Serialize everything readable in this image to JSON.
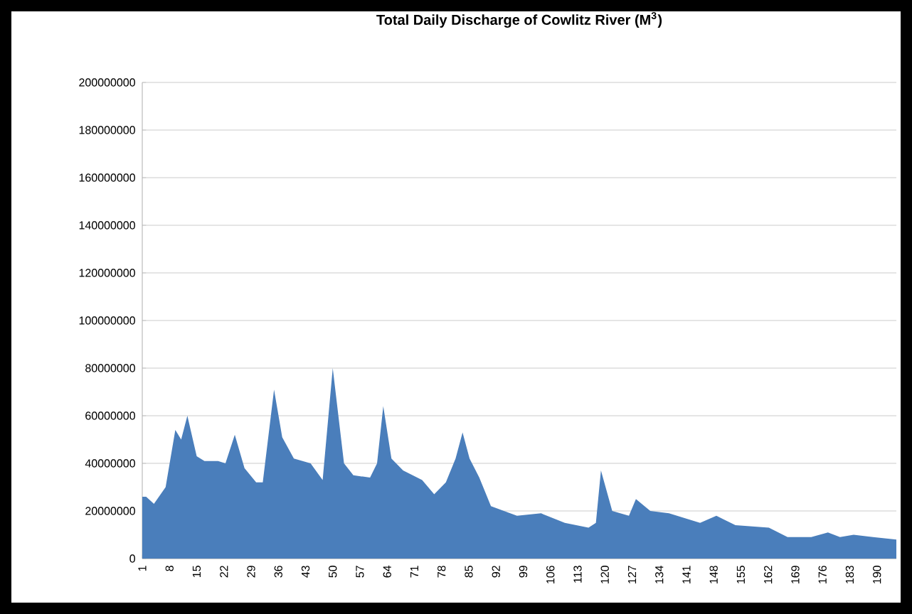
{
  "chart_data": {
    "type": "area",
    "title": "Total Daily Discharge of Cowlitz River (M$^{3}$)",
    "x": [
      1,
      2,
      4,
      7,
      9.5,
      11,
      12.6,
      15,
      17,
      20.5,
      22.4,
      24.8,
      27.3,
      30.3,
      32,
      34.9,
      37,
      40,
      44.3,
      47.4,
      50,
      52.9,
      55.3,
      59.6,
      61.4,
      63,
      65.1,
      68.1,
      73,
      76.1,
      79.1,
      81.6,
      83.4,
      85.2,
      87.7,
      90.7,
      97.4,
      103.6,
      109.7,
      115.8,
      117.7,
      119,
      121.9,
      126.2,
      128,
      131.7,
      136.5,
      144.5,
      148.7,
      153.6,
      162.2,
      167,
      173.1,
      177.4,
      180.5,
      184,
      189,
      195
    ],
    "values": [
      26000000,
      26000000,
      23000000,
      30000000,
      54000000,
      50000000,
      60000000,
      43000000,
      41000000,
      41000000,
      40000000,
      52000000,
      38000000,
      32000000,
      32000000,
      71000000,
      51000000,
      42000000,
      40000000,
      33000000,
      80000000,
      40000000,
      35000000,
      34000000,
      40000000,
      64000000,
      42000000,
      37000000,
      33000000,
      27000000,
      32000000,
      42000000,
      53000000,
      42000000,
      34000000,
      22000000,
      18000000,
      19000000,
      15000000,
      13000000,
      15000000,
      37000000,
      20000000,
      18000000,
      25000000,
      20000000,
      19000000,
      15000000,
      18000000,
      14000000,
      13000000,
      9000000,
      9000000,
      11000000,
      9000000,
      10000000,
      9000000,
      8000000
    ],
    "color": "#4a7ebb",
    "xlim": [
      1,
      195
    ],
    "xticks": [
      1,
      8,
      15,
      22,
      29,
      36,
      43,
      50,
      57,
      64,
      71,
      78,
      85,
      92,
      99,
      106,
      113,
      120,
      127,
      134,
      141,
      148,
      155,
      162,
      169,
      176,
      183,
      190
    ],
    "ylim": [
      0,
      200000000
    ],
    "yticks": [
      0,
      20000000,
      40000000,
      60000000,
      80000000,
      100000000,
      120000000,
      140000000,
      160000000,
      180000000,
      200000000
    ],
    "grid": "y"
  }
}
